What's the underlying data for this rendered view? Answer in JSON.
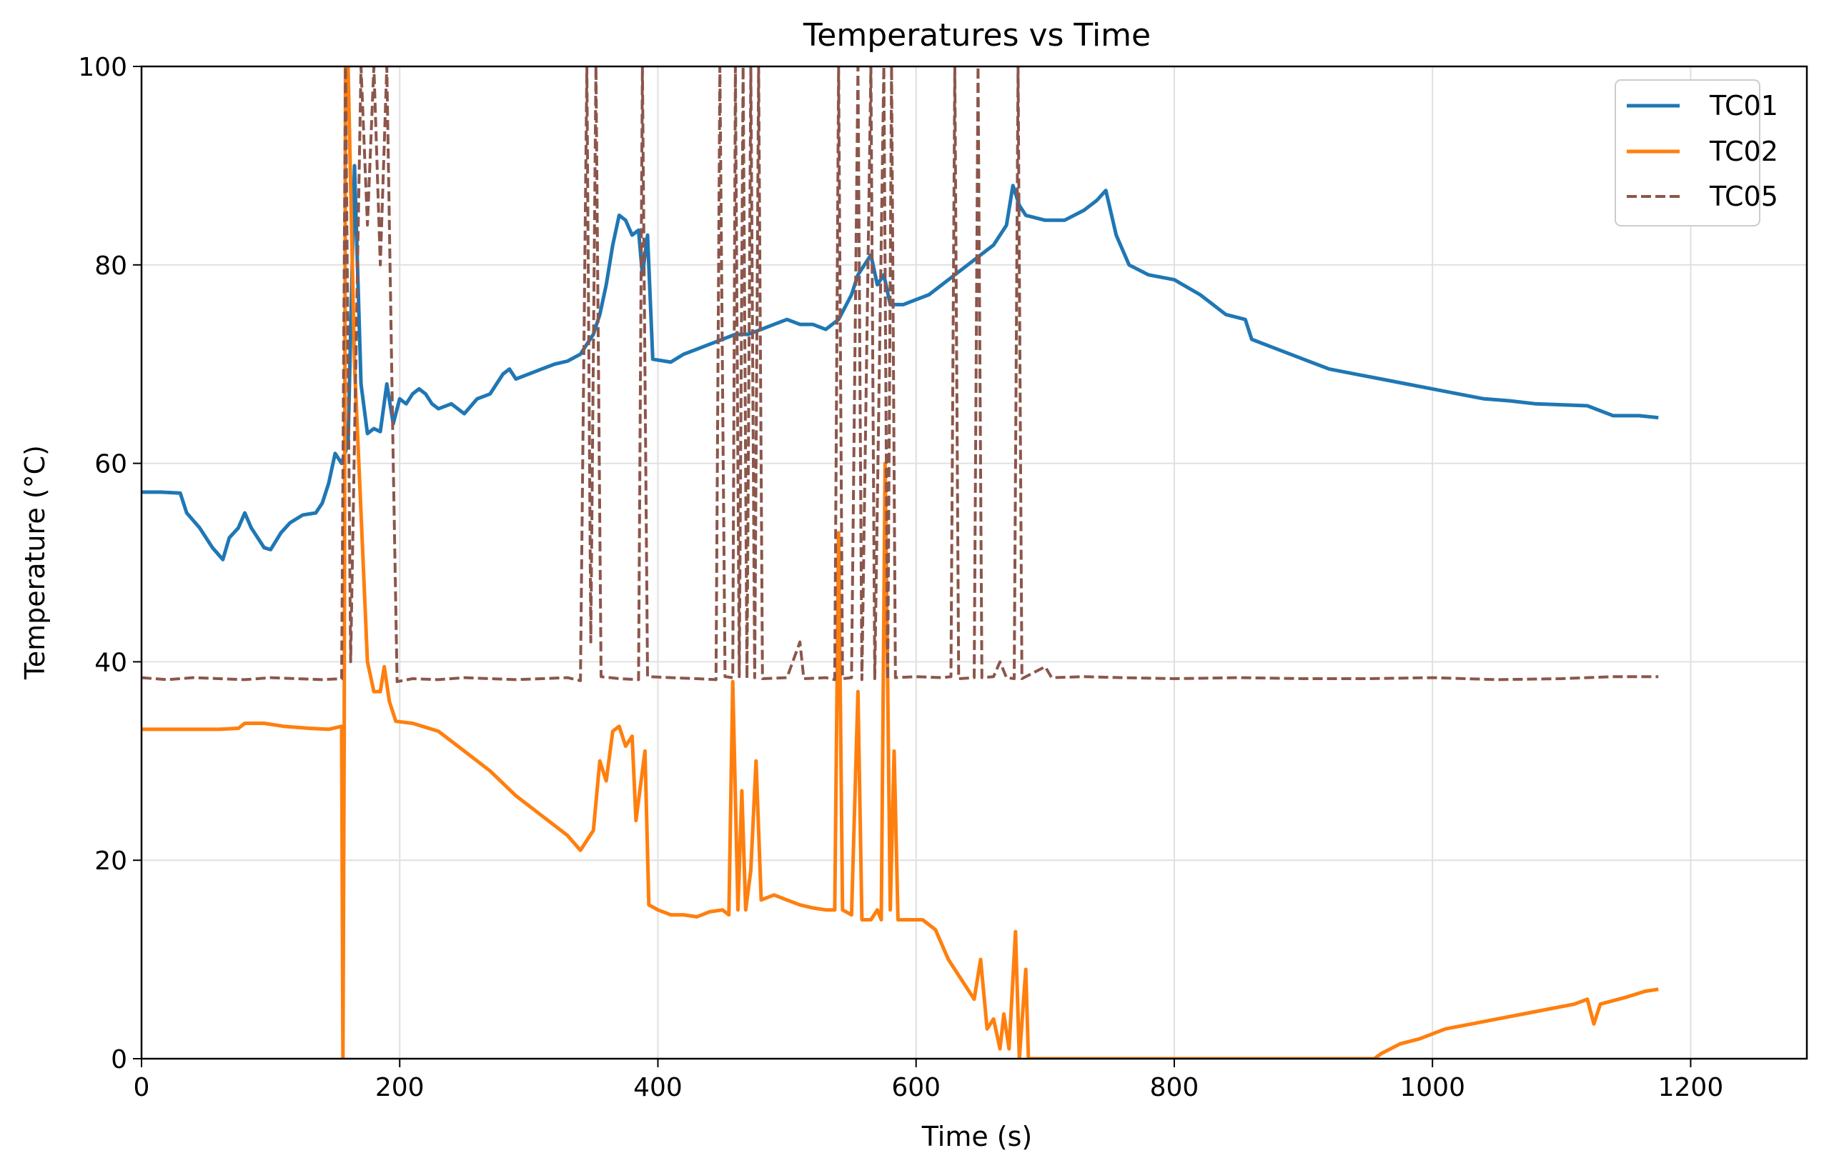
{
  "chart_data": {
    "type": "line",
    "title": "Temperatures vs Time",
    "xlabel": "Time (s)",
    "ylabel": "Temperature (°C)",
    "xlim": [
      0,
      1290
    ],
    "ylim": [
      0,
      100
    ],
    "xticks": [
      0,
      200,
      400,
      600,
      800,
      1000,
      1200
    ],
    "yticks": [
      0,
      20,
      40,
      60,
      80,
      100
    ],
    "grid": true,
    "legend_position": "top-right",
    "series": [
      {
        "name": "TC01",
        "color": "#1f77b4",
        "style": "solid",
        "points": [
          [
            0,
            57.1
          ],
          [
            15,
            57.1
          ],
          [
            30,
            57.0
          ],
          [
            35,
            55
          ],
          [
            45,
            53.5
          ],
          [
            55,
            51.5
          ],
          [
            63,
            50.3
          ],
          [
            68,
            52.5
          ],
          [
            75,
            53.5
          ],
          [
            80,
            55
          ],
          [
            85,
            53.5
          ],
          [
            95,
            51.5
          ],
          [
            100,
            51.3
          ],
          [
            108,
            53
          ],
          [
            115,
            54
          ],
          [
            125,
            54.8
          ],
          [
            135,
            55
          ],
          [
            140,
            56
          ],
          [
            145,
            58
          ],
          [
            150,
            61
          ],
          [
            155,
            60
          ],
          [
            160,
            62
          ],
          [
            165,
            90
          ],
          [
            170,
            68
          ],
          [
            175,
            63
          ],
          [
            180,
            63.5
          ],
          [
            185,
            63.2
          ],
          [
            190,
            68
          ],
          [
            195,
            64
          ],
          [
            200,
            66.5
          ],
          [
            205,
            66
          ],
          [
            210,
            67
          ],
          [
            215,
            67.5
          ],
          [
            220,
            67
          ],
          [
            225,
            66
          ],
          [
            230,
            65.5
          ],
          [
            240,
            66
          ],
          [
            250,
            65
          ],
          [
            260,
            66.5
          ],
          [
            270,
            67
          ],
          [
            275,
            68
          ],
          [
            280,
            69
          ],
          [
            285,
            69.5
          ],
          [
            290,
            68.5
          ],
          [
            300,
            69
          ],
          [
            310,
            69.5
          ],
          [
            320,
            70
          ],
          [
            330,
            70.3
          ],
          [
            340,
            71
          ],
          [
            345,
            72
          ],
          [
            350,
            73
          ],
          [
            355,
            75
          ],
          [
            360,
            78
          ],
          [
            365,
            82
          ],
          [
            370,
            85
          ],
          [
            375,
            84.5
          ],
          [
            380,
            83
          ],
          [
            385,
            83.5
          ],
          [
            388,
            79
          ],
          [
            392,
            83
          ],
          [
            396,
            70.5
          ],
          [
            410,
            70.2
          ],
          [
            420,
            71
          ],
          [
            430,
            71.5
          ],
          [
            440,
            72
          ],
          [
            450,
            72.5
          ],
          [
            460,
            73
          ],
          [
            470,
            73
          ],
          [
            480,
            73.5
          ],
          [
            490,
            74
          ],
          [
            500,
            74.5
          ],
          [
            510,
            74
          ],
          [
            520,
            74
          ],
          [
            530,
            73.5
          ],
          [
            540,
            74.5
          ],
          [
            550,
            77
          ],
          [
            555,
            79
          ],
          [
            560,
            80
          ],
          [
            565,
            81
          ],
          [
            570,
            78
          ],
          [
            575,
            79
          ],
          [
            580,
            76
          ],
          [
            590,
            76
          ],
          [
            600,
            76.5
          ],
          [
            610,
            77
          ],
          [
            620,
            78
          ],
          [
            630,
            79
          ],
          [
            640,
            80
          ],
          [
            650,
            81
          ],
          [
            660,
            82
          ],
          [
            670,
            84
          ],
          [
            675,
            88
          ],
          [
            680,
            86
          ],
          [
            685,
            85
          ],
          [
            700,
            84.5
          ],
          [
            715,
            84.5
          ],
          [
            730,
            85.5
          ],
          [
            740,
            86.5
          ],
          [
            747,
            87.5
          ],
          [
            755,
            83
          ],
          [
            765,
            80
          ],
          [
            780,
            79
          ],
          [
            800,
            78.5
          ],
          [
            820,
            77
          ],
          [
            840,
            75
          ],
          [
            855,
            74.5
          ],
          [
            860,
            72.5
          ],
          [
            880,
            71.5
          ],
          [
            900,
            70.5
          ],
          [
            920,
            69.5
          ],
          [
            940,
            69
          ],
          [
            960,
            68.5
          ],
          [
            980,
            68
          ],
          [
            1000,
            67.5
          ],
          [
            1020,
            67
          ],
          [
            1040,
            66.5
          ],
          [
            1060,
            66.3
          ],
          [
            1080,
            66
          ],
          [
            1100,
            65.9
          ],
          [
            1120,
            65.8
          ],
          [
            1140,
            64.8
          ],
          [
            1160,
            64.8
          ],
          [
            1175,
            64.6
          ]
        ]
      },
      {
        "name": "TC02",
        "color": "#ff7f0e",
        "style": "solid",
        "points": [
          [
            0,
            33.2
          ],
          [
            20,
            33.2
          ],
          [
            40,
            33.2
          ],
          [
            60,
            33.2
          ],
          [
            75,
            33.3
          ],
          [
            80,
            33.8
          ],
          [
            95,
            33.8
          ],
          [
            110,
            33.5
          ],
          [
            130,
            33.3
          ],
          [
            145,
            33.2
          ],
          [
            155,
            33.5
          ],
          [
            156,
            0
          ],
          [
            157,
            33
          ],
          [
            158,
            100
          ],
          [
            160,
            100
          ],
          [
            165,
            70
          ],
          [
            170,
            55
          ],
          [
            175,
            40
          ],
          [
            180,
            37
          ],
          [
            185,
            37
          ],
          [
            188,
            39.5
          ],
          [
            192,
            36
          ],
          [
            197,
            34
          ],
          [
            210,
            33.8
          ],
          [
            230,
            33
          ],
          [
            250,
            31
          ],
          [
            270,
            29
          ],
          [
            290,
            26.5
          ],
          [
            310,
            24.5
          ],
          [
            330,
            22.5
          ],
          [
            340,
            21
          ],
          [
            345,
            22
          ],
          [
            350,
            23
          ],
          [
            355,
            30
          ],
          [
            360,
            28
          ],
          [
            365,
            33
          ],
          [
            370,
            33.5
          ],
          [
            375,
            31.5
          ],
          [
            380,
            32.5
          ],
          [
            383,
            24
          ],
          [
            387,
            28
          ],
          [
            390,
            31
          ],
          [
            393,
            15.5
          ],
          [
            400,
            15
          ],
          [
            410,
            14.5
          ],
          [
            420,
            14.5
          ],
          [
            430,
            14.3
          ],
          [
            440,
            14.8
          ],
          [
            450,
            15
          ],
          [
            455,
            14.5
          ],
          [
            458,
            38
          ],
          [
            462,
            15
          ],
          [
            465,
            27
          ],
          [
            468,
            15
          ],
          [
            472,
            19
          ],
          [
            476,
            30
          ],
          [
            480,
            16
          ],
          [
            490,
            16.5
          ],
          [
            500,
            16
          ],
          [
            510,
            15.5
          ],
          [
            520,
            15.2
          ],
          [
            530,
            15
          ],
          [
            537,
            15
          ],
          [
            540,
            53
          ],
          [
            543,
            15
          ],
          [
            550,
            14.5
          ],
          [
            555,
            37
          ],
          [
            558,
            14
          ],
          [
            565,
            14
          ],
          [
            570,
            15
          ],
          [
            573,
            14
          ],
          [
            576,
            60
          ],
          [
            580,
            15
          ],
          [
            583,
            31
          ],
          [
            586,
            14
          ],
          [
            595,
            14
          ],
          [
            605,
            14
          ],
          [
            615,
            13
          ],
          [
            625,
            10
          ],
          [
            635,
            8
          ],
          [
            645,
            6
          ],
          [
            650,
            10
          ],
          [
            655,
            3
          ],
          [
            660,
            4
          ],
          [
            665,
            1
          ],
          [
            668,
            4.5
          ],
          [
            672,
            1
          ],
          [
            677,
            12.8
          ],
          [
            680,
            0
          ],
          [
            685,
            9
          ],
          [
            687,
            0
          ],
          [
            700,
            0
          ],
          [
            955,
            0
          ],
          [
            960,
            0.5
          ],
          [
            975,
            1.5
          ],
          [
            990,
            2
          ],
          [
            1010,
            3
          ],
          [
            1030,
            3.5
          ],
          [
            1050,
            4
          ],
          [
            1070,
            4.5
          ],
          [
            1090,
            5
          ],
          [
            1110,
            5.5
          ],
          [
            1120,
            6
          ],
          [
            1125,
            3.5
          ],
          [
            1130,
            5.5
          ],
          [
            1150,
            6.2
          ],
          [
            1165,
            6.8
          ],
          [
            1175,
            7
          ]
        ]
      },
      {
        "name": "TC05",
        "color": "#8c564b",
        "style": "dashed",
        "points": [
          [
            0,
            38.4
          ],
          [
            20,
            38.2
          ],
          [
            40,
            38.4
          ],
          [
            60,
            38.3
          ],
          [
            80,
            38.2
          ],
          [
            100,
            38.4
          ],
          [
            120,
            38.3
          ],
          [
            140,
            38.2
          ],
          [
            155,
            38.3
          ],
          [
            158,
            100
          ],
          [
            162,
            40
          ],
          [
            170,
            100
          ],
          [
            175,
            84
          ],
          [
            180,
            100
          ],
          [
            185,
            80
          ],
          [
            190,
            100
          ],
          [
            195,
            60
          ],
          [
            198,
            38
          ],
          [
            210,
            38.3
          ],
          [
            230,
            38.2
          ],
          [
            250,
            38.4
          ],
          [
            270,
            38.3
          ],
          [
            290,
            38.2
          ],
          [
            310,
            38.3
          ],
          [
            330,
            38.4
          ],
          [
            340,
            38.1
          ],
          [
            345,
            100
          ],
          [
            348,
            42
          ],
          [
            352,
            100
          ],
          [
            356,
            38.5
          ],
          [
            370,
            38.3
          ],
          [
            385,
            38.2
          ],
          [
            388,
            100
          ],
          [
            392,
            38.5
          ],
          [
            410,
            38.4
          ],
          [
            430,
            38.3
          ],
          [
            445,
            38.2
          ],
          [
            448,
            100
          ],
          [
            452,
            38.5
          ],
          [
            458,
            38.4
          ],
          [
            460,
            100
          ],
          [
            463,
            38.5
          ],
          [
            466,
            100
          ],
          [
            469,
            38.3
          ],
          [
            472,
            100
          ],
          [
            475,
            38.4
          ],
          [
            478,
            100
          ],
          [
            481,
            38.3
          ],
          [
            500,
            38.4
          ],
          [
            510,
            42
          ],
          [
            513,
            38.3
          ],
          [
            530,
            38.4
          ],
          [
            537,
            38.2
          ],
          [
            540,
            100
          ],
          [
            543,
            38.3
          ],
          [
            550,
            38.4
          ],
          [
            555,
            100
          ],
          [
            558,
            38.2
          ],
          [
            565,
            100
          ],
          [
            568,
            38.3
          ],
          [
            575,
            100
          ],
          [
            578,
            38.2
          ],
          [
            581,
            100
          ],
          [
            584,
            38.4
          ],
          [
            600,
            38.5
          ],
          [
            620,
            38.4
          ],
          [
            627,
            38.5
          ],
          [
            630,
            100
          ],
          [
            633,
            38.3
          ],
          [
            645,
            38.4
          ],
          [
            648,
            100
          ],
          [
            651,
            38.4
          ],
          [
            660,
            38.5
          ],
          [
            665,
            40
          ],
          [
            670,
            38.4
          ],
          [
            676,
            38.3
          ],
          [
            679,
            100
          ],
          [
            682,
            38.3
          ],
          [
            700,
            39.5
          ],
          [
            705,
            38.4
          ],
          [
            730,
            38.5
          ],
          [
            760,
            38.4
          ],
          [
            800,
            38.3
          ],
          [
            850,
            38.4
          ],
          [
            900,
            38.3
          ],
          [
            950,
            38.3
          ],
          [
            1000,
            38.4
          ],
          [
            1050,
            38.2
          ],
          [
            1100,
            38.3
          ],
          [
            1140,
            38.5
          ],
          [
            1175,
            38.5
          ]
        ]
      }
    ]
  }
}
